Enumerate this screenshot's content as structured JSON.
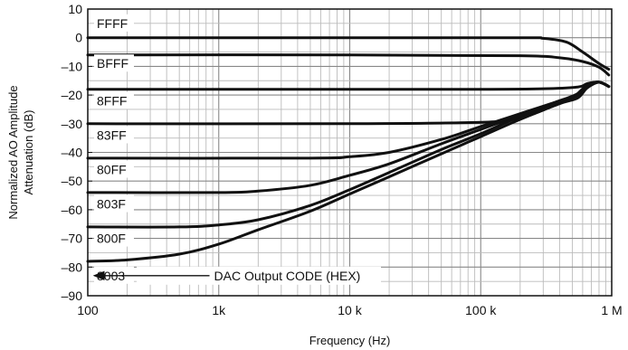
{
  "chart_data": {
    "type": "line",
    "title": "",
    "xlabel": "Frequency (Hz)",
    "ylabel_lines": [
      "Normalized AO Amplitude",
      "Attenuation (dB)"
    ],
    "x_scale": "log",
    "xlim": [
      100,
      1000000
    ],
    "ylim": [
      -90,
      10
    ],
    "grid": true,
    "x_ticks": [
      {
        "value": 100,
        "label": "100"
      },
      {
        "value": 1000,
        "label": "1k"
      },
      {
        "value": 10000,
        "label": "10 k"
      },
      {
        "value": 100000,
        "label": "100 k"
      },
      {
        "value": 1000000,
        "label": "1 M"
      }
    ],
    "y_ticks": [
      {
        "value": 10,
        "label": "10"
      },
      {
        "value": 0,
        "label": "0"
      },
      {
        "value": -10,
        "label": "–10"
      },
      {
        "value": -20,
        "label": "–20"
      },
      {
        "value": -30,
        "label": "–30"
      },
      {
        "value": -40,
        "label": "–40"
      },
      {
        "value": -50,
        "label": "–50"
      },
      {
        "value": -60,
        "label": "–60"
      },
      {
        "value": -70,
        "label": "–70"
      },
      {
        "value": -80,
        "label": "–80"
      },
      {
        "value": -90,
        "label": "–90"
      }
    ],
    "series": [
      {
        "name": "FFFF",
        "points": [
          [
            100,
            0
          ],
          [
            10000,
            0
          ],
          [
            200000,
            0
          ],
          [
            300000,
            -0.2
          ],
          [
            450000,
            -1.5
          ],
          [
            600000,
            -5
          ],
          [
            800000,
            -9
          ],
          [
            950000,
            -11
          ]
        ]
      },
      {
        "name": "BFFF",
        "points": [
          [
            100,
            -6
          ],
          [
            10000,
            -6
          ],
          [
            200000,
            -6.3
          ],
          [
            400000,
            -7
          ],
          [
            600000,
            -8.3
          ],
          [
            800000,
            -10.3
          ],
          [
            950000,
            -13
          ]
        ]
      },
      {
        "name": "8FFF",
        "points": [
          [
            100,
            -18
          ],
          [
            10000,
            -18
          ],
          [
            100000,
            -18
          ],
          [
            300000,
            -17.8
          ],
          [
            550000,
            -17.2
          ],
          [
            650000,
            -16
          ],
          [
            800000,
            -15.5
          ],
          [
            950000,
            -17
          ]
        ]
      },
      {
        "name": "83FF",
        "points": [
          [
            100,
            -30
          ],
          [
            10000,
            -30
          ],
          [
            100000,
            -29.5
          ],
          [
            200000,
            -28
          ],
          [
            350000,
            -24
          ],
          [
            500000,
            -21
          ],
          [
            650000,
            -16.5
          ],
          [
            800000,
            -15.5
          ],
          [
            950000,
            -17
          ]
        ]
      },
      {
        "name": "80FF",
        "points": [
          [
            100,
            -42
          ],
          [
            5000,
            -42
          ],
          [
            10000,
            -41.5
          ],
          [
            20000,
            -40
          ],
          [
            50000,
            -35.5
          ],
          [
            100000,
            -31
          ],
          [
            200000,
            -26.5
          ],
          [
            400000,
            -22
          ],
          [
            550000,
            -19.5
          ],
          [
            650000,
            -16.5
          ],
          [
            800000,
            -15.5
          ],
          [
            950000,
            -17
          ]
        ]
      },
      {
        "name": "803F",
        "points": [
          [
            100,
            -54
          ],
          [
            1000,
            -54
          ],
          [
            2000,
            -53.5
          ],
          [
            5000,
            -51.5
          ],
          [
            10000,
            -48
          ],
          [
            20000,
            -44
          ],
          [
            50000,
            -37
          ],
          [
            100000,
            -32
          ],
          [
            200000,
            -27
          ],
          [
            400000,
            -22
          ],
          [
            550000,
            -20
          ],
          [
            650000,
            -17
          ],
          [
            800000,
            -15.5
          ],
          [
            950000,
            -17
          ]
        ]
      },
      {
        "name": "800F",
        "points": [
          [
            100,
            -66
          ],
          [
            500,
            -66
          ],
          [
            1000,
            -65.3
          ],
          [
            2000,
            -63.5
          ],
          [
            5000,
            -58.5
          ],
          [
            10000,
            -53
          ],
          [
            20000,
            -47
          ],
          [
            50000,
            -39
          ],
          [
            100000,
            -33.5
          ],
          [
            200000,
            -27.5
          ],
          [
            400000,
            -22.5
          ],
          [
            550000,
            -20.5
          ],
          [
            650000,
            -17
          ],
          [
            800000,
            -15.5
          ],
          [
            950000,
            -17
          ]
        ]
      },
      {
        "name": "8003",
        "points": [
          [
            100,
            -78
          ],
          [
            200,
            -77.5
          ],
          [
            500,
            -75.5
          ],
          [
            1000,
            -72
          ],
          [
            2000,
            -67
          ],
          [
            5000,
            -60.5
          ],
          [
            10000,
            -54.5
          ],
          [
            20000,
            -48.5
          ],
          [
            50000,
            -40.5
          ],
          [
            100000,
            -34.5
          ],
          [
            200000,
            -28.5
          ],
          [
            400000,
            -23
          ],
          [
            550000,
            -21
          ],
          [
            650000,
            -17.5
          ],
          [
            800000,
            -15.5
          ],
          [
            950000,
            -17
          ]
        ]
      }
    ],
    "series_label_y": [
      {
        "name": "FFFF",
        "y": 5
      },
      {
        "name": "BFFF",
        "y": -9
      },
      {
        "name": "8FFF",
        "y": -22
      },
      {
        "name": "83FF",
        "y": -34
      },
      {
        "name": "80FF",
        "y": -46
      },
      {
        "name": "803F",
        "y": -58
      },
      {
        "name": "800F",
        "y": -70
      },
      {
        "name": "8003",
        "y": -83
      }
    ],
    "annotation": {
      "text": "DAC Output CODE (HEX)",
      "arrow_from_x": 850,
      "arrow_to_x": 180,
      "y": -83
    }
  }
}
